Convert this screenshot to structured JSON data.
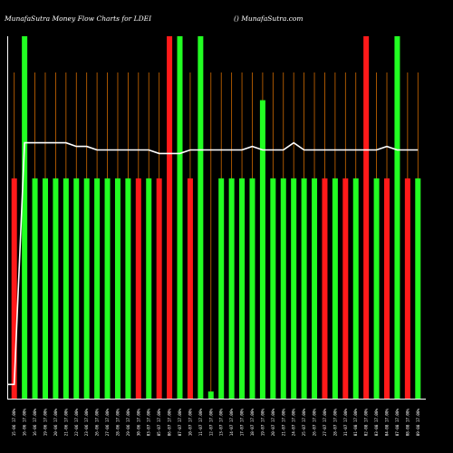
{
  "title_left": "MunafaSutra  Money Flow  Charts for LDEI",
  "title_right": "() MunafaSutra.com",
  "colors": {
    "background": "#000000",
    "up": "#22ff22",
    "down": "#ff1a1a",
    "gridline": "#d06a00",
    "flow_line": "#ffffff",
    "axis": "#ffffff"
  },
  "chart_data": {
    "type": "bar",
    "title": "MunafaSutra  Money Flow  Charts for LDEI",
    "categories": [
      "16-06",
      "16-06",
      "23-06",
      "23-06",
      "23-06",
      "23-06",
      "23-06",
      "23-06",
      "30-06",
      "30-06",
      "07-07",
      "07-07",
      "07-07",
      "14-07",
      "14-07",
      "21-07",
      "21-07",
      "21-07",
      "28-07",
      "04-08",
      "04-08",
      "11-08",
      "11-08",
      "18-08",
      "18-08",
      "18-08",
      "25-08",
      "01-09",
      "01-09",
      "08-09",
      "08-09",
      "15-09",
      "15-09",
      "22-09",
      "22-09",
      "29-09",
      "29-09",
      "06-10",
      "06-10",
      "13-10"
    ],
    "x_tick_labels": [
      "15-06 17.00%",
      "16-06 17.00%",
      "16-06 17.00%",
      "19-06 17.00%",
      "20-06 17.00%",
      "21-06 17.00%",
      "22-06 17.00%",
      "23-06 17.00%",
      "26-06 17.00%",
      "27-06 17.00%",
      "28-06 17.00%",
      "29-06 17.00%",
      "30-06 17.00%",
      "03-07 17.00%",
      "05-07 17.00%",
      "06-07 17.00%",
      "07-07 17.00%",
      "10-07 17.00%",
      "11-07 17.00%",
      "12-07 17.00%",
      "13-07 17.00%",
      "14-07 17.00%",
      "17-07 17.00%",
      "18-07 17.00%",
      "19-07 17.00%",
      "20-07 17.00%",
      "21-07 17.00%",
      "24-07 17.00%",
      "25-07 17.00%",
      "26-07 17.00%",
      "27-07 17.00%",
      "28-07 17.00%",
      "31-07 17.00%",
      "01-08 17.00%",
      "02-08 17.00%",
      "03-08 17.00%",
      "04-08 17.00%",
      "07-08 17.00%",
      "08-08 17.00%",
      "09-08 17.00%"
    ],
    "series": [
      {
        "values": [
          62,
          102,
          62,
          62,
          62,
          62,
          62,
          62,
          62,
          62,
          62,
          62,
          62,
          62,
          62,
          102,
          102,
          62,
          102,
          2,
          62,
          62,
          62,
          62,
          84,
          62,
          62,
          62,
          62,
          62,
          62,
          62,
          62,
          62,
          102,
          62,
          62,
          102,
          62,
          62
        ],
        "direction": [
          "down",
          "up",
          "up",
          "up",
          "up",
          "up",
          "up",
          "up",
          "up",
          "up",
          "up",
          "up",
          "down",
          "up",
          "down",
          "down",
          "up",
          "down",
          "up",
          "up",
          "up",
          "up",
          "up",
          "up",
          "up",
          "up",
          "up",
          "up",
          "up",
          "up",
          "down",
          "up",
          "down",
          "up",
          "down",
          "up",
          "down",
          "up",
          "down",
          "up"
        ]
      },
      {
        "values": [
          4,
          72,
          72,
          72,
          72,
          72,
          71,
          71,
          70,
          70,
          70,
          70,
          70,
          70,
          69,
          69,
          69,
          70,
          70,
          70,
          70,
          70,
          70,
          71,
          70,
          70,
          70,
          72,
          70,
          70,
          70,
          70,
          70,
          70,
          70,
          70,
          71,
          70,
          70,
          70
        ]
      }
    ],
    "ylim": [
      0,
      102
    ],
    "grid": true
  }
}
